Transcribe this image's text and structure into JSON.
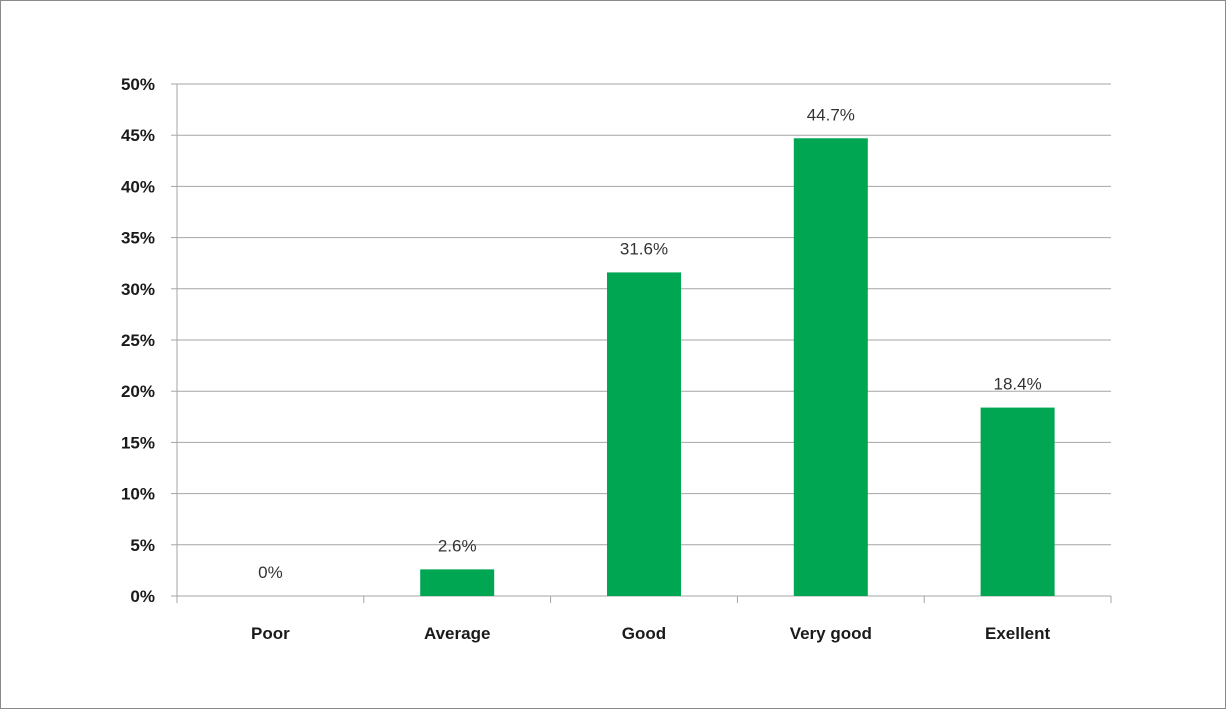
{
  "chart_data": {
    "type": "bar",
    "categories": [
      "Poor",
      "Average",
      "Good",
      "Very good",
      "Exellent"
    ],
    "values": [
      0,
      2.6,
      31.6,
      44.7,
      18.4
    ],
    "data_labels": [
      "0%",
      "2.6%",
      "31.6%",
      "44.7%",
      "18.4%"
    ],
    "ylim": [
      0,
      50
    ],
    "y_ticks": [
      0,
      5,
      10,
      15,
      20,
      25,
      30,
      35,
      40,
      45,
      50
    ],
    "y_tick_labels": [
      "0%",
      "5%",
      "10%",
      "15%",
      "20%",
      "25%",
      "30%",
      "35%",
      "40%",
      "45%",
      "50%"
    ],
    "grid": true,
    "legend": "none",
    "title": "",
    "xlabel": "",
    "ylabel": "",
    "colors": {
      "bar": "#00a651",
      "grid": "#a6a6a6",
      "axis": "#a6a6a6"
    }
  }
}
